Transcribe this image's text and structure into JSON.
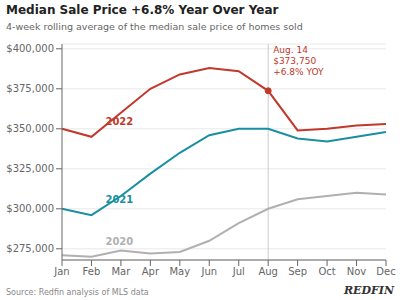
{
  "chart_data": {
    "type": "line",
    "title": "Median Sale Price +6.8% Year Over Year",
    "subtitle": "4-week rolling average of the median sale price of homes sold",
    "source": "Source: Redfin analysis of MLS data",
    "logo": "REDFIN",
    "categories": [
      "Jan",
      "Feb",
      "Mar",
      "Apr",
      "May",
      "Jun",
      "Jul",
      "Aug",
      "Sep",
      "Oct",
      "Nov",
      "Dec"
    ],
    "series": [
      {
        "name": "2020",
        "color": "#b0b0b0",
        "values": [
          271000,
          270000,
          274000,
          272000,
          273000,
          280000,
          291000,
          300000,
          306000,
          308000,
          310000,
          309000
        ]
      },
      {
        "name": "2021",
        "color": "#1a8fa0",
        "values": [
          300000,
          296000,
          308000,
          322000,
          335000,
          346000,
          350000,
          350000,
          344000,
          342000,
          345000,
          348000
        ]
      },
      {
        "name": "2022",
        "color": "#c0392b",
        "values": [
          350000,
          345000,
          360000,
          375000,
          384000,
          388000,
          386000,
          373750,
          349000,
          350000,
          352000,
          353000
        ]
      }
    ],
    "ylim": [
      268000,
      403000
    ],
    "yticks": [
      {
        "value": 275000,
        "label": "$275,000"
      },
      {
        "value": 300000,
        "label": "$300,000"
      },
      {
        "value": 325000,
        "label": "$325,000"
      },
      {
        "value": 350000,
        "label": "$350,000"
      },
      {
        "value": 375000,
        "label": "$375,000"
      },
      {
        "value": 400000,
        "label": "$400,000"
      }
    ],
    "grid": true,
    "annotations": [
      {
        "text": "Aug. 14\n$373,750\n+6.8% YOY",
        "x": "Aug",
        "y": 373750,
        "color": "#c0392b"
      }
    ]
  }
}
